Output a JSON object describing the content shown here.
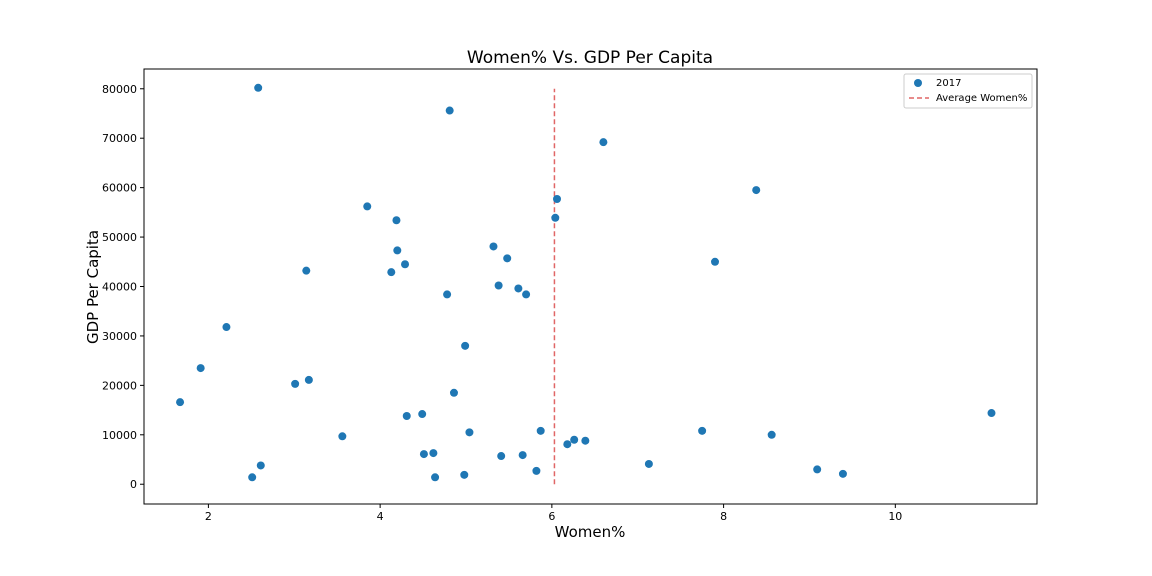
{
  "chart_data": {
    "type": "scatter",
    "title": "Women% Vs. GDP Per Capita",
    "xlabel": "Women%",
    "ylabel": "GDP Per Capita",
    "xlim": [
      1.25,
      11.65
    ],
    "ylim": [
      -4000,
      84000
    ],
    "xticks": [
      2,
      4,
      6,
      8,
      10
    ],
    "yticks": [
      0,
      10000,
      20000,
      30000,
      40000,
      50000,
      60000,
      70000,
      80000
    ],
    "grid": false,
    "legend_position": "top-right",
    "series": [
      {
        "name": "2017",
        "color": "#1f77b4",
        "points": [
          [
            2.58,
            80200
          ],
          [
            4.81,
            75600
          ],
          [
            6.6,
            69200
          ],
          [
            8.38,
            59500
          ],
          [
            6.06,
            57700
          ],
          [
            3.85,
            56200
          ],
          [
            4.19,
            53400
          ],
          [
            6.04,
            53900
          ],
          [
            5.32,
            48100
          ],
          [
            4.2,
            47300
          ],
          [
            5.48,
            45700
          ],
          [
            7.9,
            45000
          ],
          [
            4.29,
            44500
          ],
          [
            3.14,
            43200
          ],
          [
            4.13,
            42900
          ],
          [
            5.38,
            40200
          ],
          [
            5.61,
            39600
          ],
          [
            5.7,
            38400
          ],
          [
            4.78,
            38400
          ],
          [
            2.21,
            31800
          ],
          [
            4.99,
            28000
          ],
          [
            1.91,
            23500
          ],
          [
            3.17,
            21100
          ],
          [
            3.01,
            20300
          ],
          [
            4.86,
            18500
          ],
          [
            1.67,
            16600
          ],
          [
            11.12,
            14400
          ],
          [
            4.49,
            14200
          ],
          [
            4.31,
            13800
          ],
          [
            5.04,
            10500
          ],
          [
            5.87,
            10800
          ],
          [
            7.75,
            10800
          ],
          [
            8.56,
            10000
          ],
          [
            3.56,
            9700
          ],
          [
            6.26,
            9000
          ],
          [
            6.39,
            8800
          ],
          [
            6.18,
            8100
          ],
          [
            4.51,
            6100
          ],
          [
            4.62,
            6300
          ],
          [
            5.41,
            5700
          ],
          [
            5.66,
            5900
          ],
          [
            2.61,
            3800
          ],
          [
            7.13,
            4100
          ],
          [
            9.09,
            3000
          ],
          [
            5.82,
            2700
          ],
          [
            9.39,
            2100
          ],
          [
            2.51,
            1400
          ],
          [
            4.64,
            1400
          ],
          [
            4.98,
            1900
          ]
        ]
      }
    ],
    "reference_lines": [
      {
        "name": "Average Women%",
        "color": "#e06666",
        "style": "dashed",
        "x": 6.03,
        "y_from": 0,
        "y_to": 80000
      }
    ]
  }
}
